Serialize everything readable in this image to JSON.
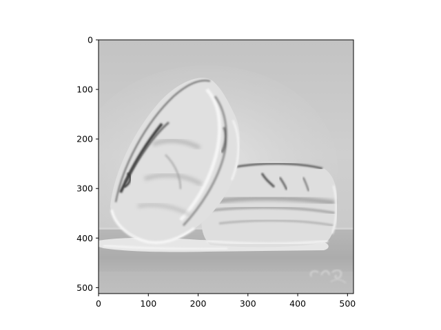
{
  "image": {
    "description_tags": [
      "grayscale-edge-filtered",
      "macarons"
    ],
    "signature_text": "C.H.G."
  },
  "axes": {
    "x": {
      "ticks": [
        0,
        100,
        200,
        300,
        400,
        500
      ],
      "range": [
        0,
        512
      ]
    },
    "y": {
      "ticks": [
        0,
        100,
        200,
        300,
        400,
        500
      ],
      "range": [
        0,
        512
      ],
      "inverted": true
    }
  },
  "colors": {
    "background_light": "#cdcdcd",
    "background_dark": "#b9b9b9",
    "table": "#a8a8a8",
    "object_fill": "#e3e3e3",
    "shadow_lines": "#3f3f3f",
    "highlight": "#f8f8f8"
  }
}
